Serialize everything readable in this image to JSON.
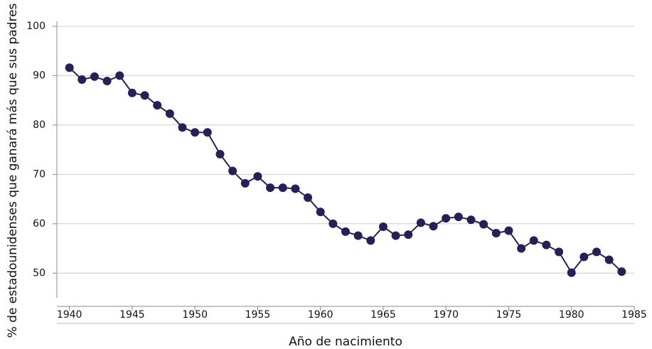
{
  "chart_data": {
    "type": "line",
    "x_label": "Año de nacimiento",
    "y_label": "% de estadounidenses que ganará más que sus padres",
    "x": [
      1940,
      1941,
      1942,
      1943,
      1944,
      1945,
      1946,
      1947,
      1948,
      1949,
      1950,
      1951,
      1952,
      1953,
      1954,
      1955,
      1956,
      1957,
      1958,
      1959,
      1960,
      1961,
      1962,
      1963,
      1964,
      1965,
      1966,
      1967,
      1968,
      1969,
      1970,
      1971,
      1972,
      1973,
      1974,
      1975,
      1976,
      1977,
      1978,
      1979,
      1980,
      1981,
      1982,
      1983,
      1984
    ],
    "series": [
      {
        "color": "#24215a",
        "values": [
          91.6,
          89.2,
          89.8,
          88.9,
          90.0,
          86.5,
          86.0,
          84.0,
          82.3,
          79.5,
          78.5,
          78.5,
          74.1,
          70.7,
          68.2,
          69.6,
          67.3,
          67.3,
          67.1,
          65.3,
          62.4,
          60.0,
          58.4,
          57.6,
          56.6,
          59.4,
          57.6,
          57.8,
          60.2,
          59.5,
          61.1,
          61.4,
          60.8,
          59.9,
          58.1,
          58.6,
          55.0,
          56.6,
          55.7,
          54.3,
          50.1,
          53.3,
          54.3,
          52.7,
          50.3
        ]
      }
    ],
    "xlim": [
      1939,
      1985
    ],
    "xticks": [
      1940,
      1945,
      1950,
      1955,
      1960,
      1965,
      1970,
      1975,
      1980,
      1985
    ],
    "ylim": [
      45,
      101
    ],
    "yticks": [
      50,
      60,
      70,
      80,
      90,
      100
    ],
    "grid": true
  }
}
